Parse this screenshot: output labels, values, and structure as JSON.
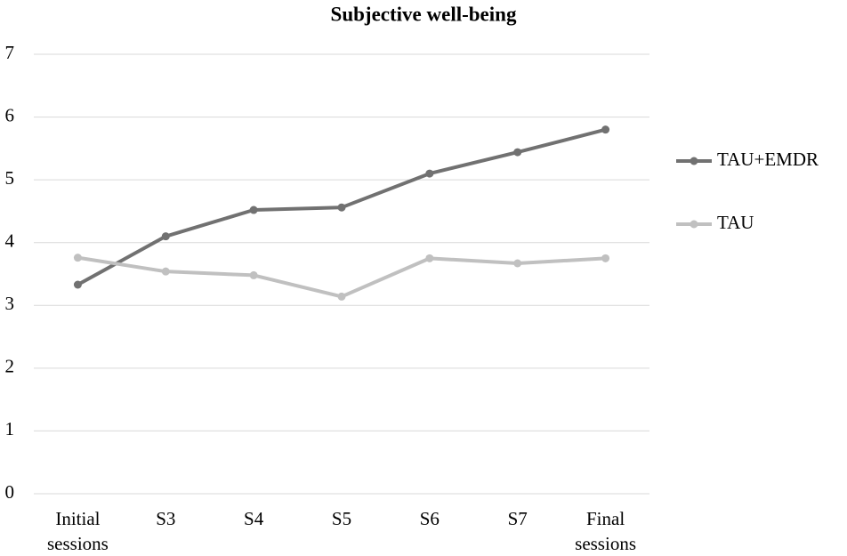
{
  "chart_data": {
    "type": "line",
    "title": "Subjective well-being",
    "categories": [
      "Initial sessions",
      "S3",
      "S4",
      "S5",
      "S6",
      "S7",
      "Final sessions"
    ],
    "series": [
      {
        "name": "TAU+EMDR",
        "color": "#717171",
        "values": [
          3.33,
          4.1,
          4.52,
          4.56,
          5.1,
          5.44,
          5.8
        ]
      },
      {
        "name": "TAU",
        "color": "#c0c0c0",
        "values": [
          3.76,
          3.54,
          3.48,
          3.14,
          3.75,
          3.67,
          3.75
        ]
      }
    ],
    "ylim": [
      0,
      7
    ],
    "yticks": [
      0,
      1,
      2,
      3,
      4,
      5,
      6,
      7
    ],
    "grid": true,
    "legend": "right"
  }
}
